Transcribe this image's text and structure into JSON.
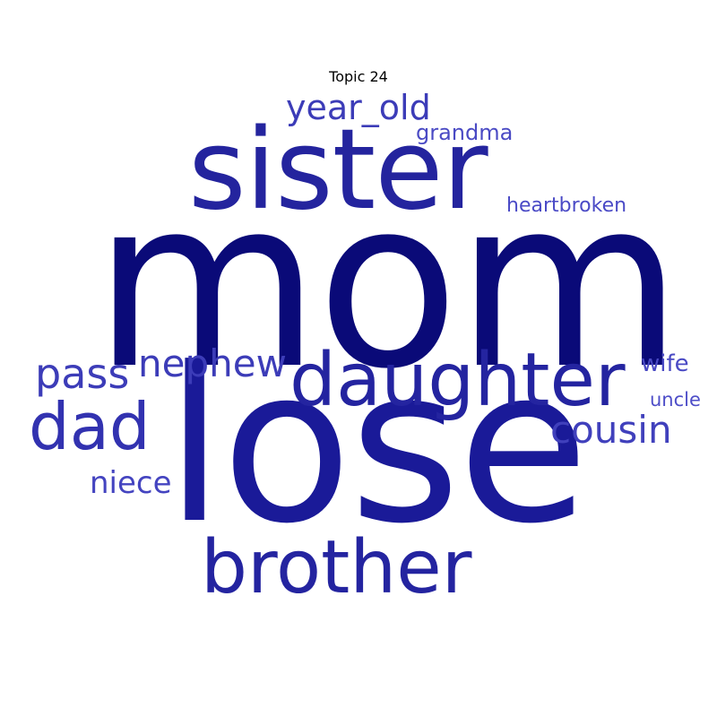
{
  "title": "Topic 24",
  "colors": {
    "darkest": "#0a0a78",
    "dark": "#1f1f96",
    "medium": "#2a2aa8",
    "light": "#3a3ab8",
    "lighter": "#4a4ac6"
  },
  "words": [
    {
      "text": "mom",
      "color": "#0a0a78"
    },
    {
      "text": "lose",
      "color": "#1a1a98"
    },
    {
      "text": "sister",
      "color": "#24249e"
    },
    {
      "text": "daughter",
      "color": "#2424a0"
    },
    {
      "text": "brother",
      "color": "#2424a0"
    },
    {
      "text": "dad",
      "color": "#3232b0"
    },
    {
      "text": "pass",
      "color": "#3c3cb8"
    },
    {
      "text": "nephew",
      "color": "#3c3cb8"
    },
    {
      "text": "year_old",
      "color": "#3c3cb8"
    },
    {
      "text": "cousin",
      "color": "#4040bc"
    },
    {
      "text": "niece",
      "color": "#4444c0"
    },
    {
      "text": "grandma",
      "color": "#4a4ac4"
    },
    {
      "text": "wife",
      "color": "#4a4ac4"
    },
    {
      "text": "heartbroken",
      "color": "#4a4ac6"
    },
    {
      "text": "uncle",
      "color": "#4e4ec8"
    }
  ]
}
